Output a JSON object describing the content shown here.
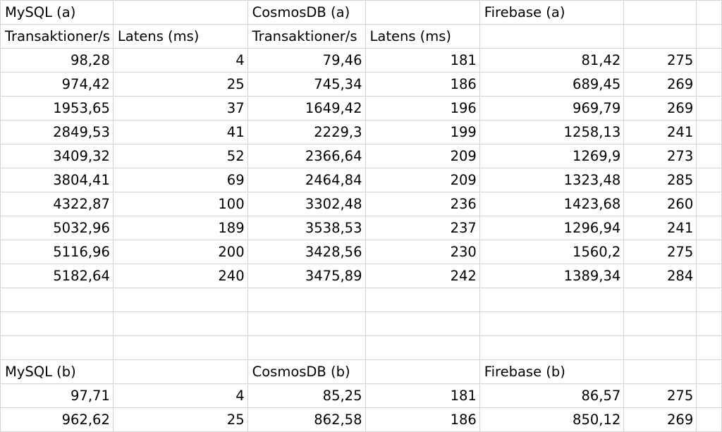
{
  "sheet": {
    "section_a": {
      "groups": [
        "MySQL (a)",
        "CosmosDB (a)",
        "Firebase (a)"
      ],
      "subheaders": [
        "Transaktioner/s",
        "Latens (ms)",
        "Transaktioner/s",
        "Latens (ms)",
        "",
        ""
      ],
      "rows": [
        [
          "98,28",
          "4",
          "79,46",
          "181",
          "81,42",
          "275"
        ],
        [
          "974,42",
          "25",
          "745,34",
          "186",
          "689,45",
          "269"
        ],
        [
          "1953,65",
          "37",
          "1649,42",
          "196",
          "969,79",
          "269"
        ],
        [
          "2849,53",
          "41",
          "2229,3",
          "199",
          "1258,13",
          "241"
        ],
        [
          "3409,32",
          "52",
          "2366,64",
          "209",
          "1269,9",
          "273"
        ],
        [
          "3804,41",
          "69",
          "2464,84",
          "209",
          "1323,48",
          "285"
        ],
        [
          "4322,87",
          "100",
          "3302,48",
          "236",
          "1423,68",
          "260"
        ],
        [
          "5032,96",
          "189",
          "3538,53",
          "237",
          "1296,94",
          "241"
        ],
        [
          "5116,96",
          "200",
          "3428,56",
          "230",
          "1560,2",
          "275"
        ],
        [
          "5182,64",
          "240",
          "3475,89",
          "242",
          "1389,34",
          "284"
        ]
      ]
    },
    "section_b": {
      "groups": [
        "MySQL (b)",
        "CosmosDB (b)",
        "Firebase (b)"
      ],
      "rows": [
        [
          "97,71",
          "4",
          "85,25",
          "181",
          "86,57",
          "275"
        ],
        [
          "962,62",
          "25",
          "862,58",
          "186",
          "850,12",
          "269"
        ]
      ]
    }
  }
}
